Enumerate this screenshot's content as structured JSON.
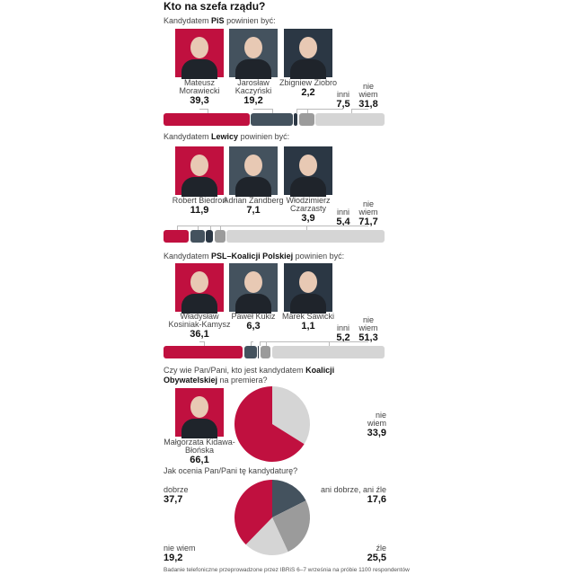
{
  "title": "Kto na szefa rządu?",
  "note": "Badanie telefoniczne przeprowadzone przez IBRiS 6–7 września na próbie 1100 respondentów",
  "chart_data": [
    {
      "type": "stacked_bar",
      "xlim": [
        0,
        100
      ],
      "subtitle": [
        {
          "text": "Kandydatem "
        },
        {
          "text": "PiS",
          "bold": true
        },
        {
          "text": " powinien być:"
        }
      ],
      "series": [
        {
          "name": "Mateusz Morawiecki",
          "color": "#c0103f",
          "values": [
            39.3
          ],
          "value_labels": [
            "39,3"
          ]
        },
        {
          "name": "Jarosław Kaczyński",
          "color": "#44525e",
          "values": [
            19.2
          ],
          "value_labels": [
            "19,2"
          ]
        },
        {
          "name": "Zbigniew Ziobro",
          "color": "#2b3744",
          "values": [
            2.2
          ],
          "value_labels": [
            "2,2"
          ]
        },
        {
          "name": "inni",
          "color": "#9b9b9b",
          "values": [
            7.5
          ],
          "value_labels": [
            "7,5"
          ]
        },
        {
          "name": "nie wiem",
          "color": "#d5d5d5",
          "values": [
            31.8
          ],
          "value_labels": [
            "31,8"
          ]
        }
      ]
    },
    {
      "type": "stacked_bar",
      "xlim": [
        0,
        100
      ],
      "subtitle": [
        {
          "text": "Kandydatem "
        },
        {
          "text": "Lewicy",
          "bold": true
        },
        {
          "text": " powinien być:"
        }
      ],
      "series": [
        {
          "name": "Robert Biedroń",
          "color": "#c0103f",
          "values": [
            11.9
          ],
          "value_labels": [
            "11,9"
          ]
        },
        {
          "name": "Adrian Zandberg",
          "color": "#44525e",
          "values": [
            7.1
          ],
          "value_labels": [
            "7,1"
          ]
        },
        {
          "name": "Włodzimierz Czarzasty",
          "color": "#2b3744",
          "values": [
            3.9
          ],
          "value_labels": [
            "3,9"
          ]
        },
        {
          "name": "inni",
          "color": "#9b9b9b",
          "values": [
            5.4
          ],
          "value_labels": [
            "5,4"
          ]
        },
        {
          "name": "nie wiem",
          "color": "#d5d5d5",
          "values": [
            71.7
          ],
          "value_labels": [
            "71,7"
          ]
        }
      ]
    },
    {
      "type": "stacked_bar",
      "xlim": [
        0,
        100
      ],
      "subtitle": [
        {
          "text": "Kandydatem "
        },
        {
          "text": "PSL–Koalicji Polskiej",
          "bold": true
        },
        {
          "text": " powinien być:"
        }
      ],
      "series": [
        {
          "name": "Władysław Kosiniak-Kamysz",
          "color": "#c0103f",
          "values": [
            36.1
          ],
          "value_labels": [
            "36,1"
          ]
        },
        {
          "name": "Paweł Kukiz",
          "color": "#44525e",
          "values": [
            6.3
          ],
          "value_labels": [
            "6,3"
          ]
        },
        {
          "name": "Marek Sawicki",
          "color": "#2b3744",
          "values": [
            1.1
          ],
          "value_labels": [
            "1,1"
          ]
        },
        {
          "name": "inni",
          "color": "#9b9b9b",
          "values": [
            5.2
          ],
          "value_labels": [
            "5,2"
          ]
        },
        {
          "name": "nie wiem",
          "color": "#d5d5d5",
          "values": [
            51.3
          ],
          "value_labels": [
            "51,3"
          ]
        }
      ]
    },
    {
      "type": "pie",
      "subtitle": [
        {
          "text": "Czy wie Pan/Pani, kto jest kandydatem "
        },
        {
          "text": "Koalicji Obywatelskiej",
          "bold": true
        },
        {
          "text": " na premiera?"
        }
      ],
      "series": [
        {
          "name": "nie wiem",
          "color": "#d5d5d5",
          "values": [
            33.9
          ],
          "value_labels": [
            "33,9"
          ]
        },
        {
          "name": "Małgorzata Kidawa-Błońska",
          "color": "#c0103f",
          "values": [
            66.1
          ],
          "value_labels": [
            "66,1"
          ]
        }
      ]
    },
    {
      "type": "pie",
      "subtitle": [
        {
          "text": "Jak ocenia Pan/Pani tę kandydaturę?"
        }
      ],
      "series": [
        {
          "name": "ani dobrze, ani źle",
          "color": "#44525e",
          "values": [
            17.6
          ],
          "value_labels": [
            "17,6"
          ]
        },
        {
          "name": "źle",
          "color": "#9b9b9b",
          "values": [
            25.5
          ],
          "value_labels": [
            "25,5"
          ]
        },
        {
          "name": "nie wiem",
          "color": "#d5d5d5",
          "values": [
            19.2
          ],
          "value_labels": [
            "19,2"
          ]
        },
        {
          "name": "dobrze",
          "color": "#c0103f",
          "values": [
            37.7
          ],
          "value_labels": [
            "37,7"
          ]
        }
      ]
    }
  ]
}
